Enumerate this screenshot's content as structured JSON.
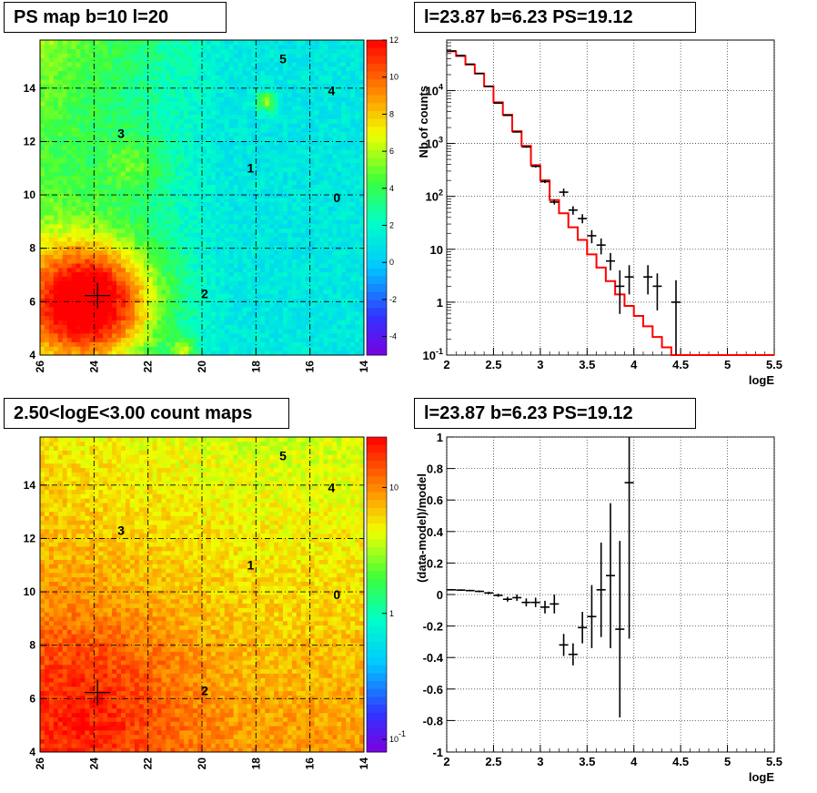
{
  "titles": {
    "map1": "PS map b=10 l=20",
    "spec1": "l=23.87 b=6.23 PS=19.12",
    "map2": "2.50<logE<3.00 count maps",
    "spec2": "l=23.87 b=6.23 PS=19.12"
  },
  "chart_data": [
    {
      "type": "heatmap",
      "title": "PS map b=10 l=20",
      "x_ticks": [
        "26",
        "24",
        "22",
        "20",
        "18",
        "16",
        "14"
      ],
      "y_ticks": [
        "4",
        "6",
        "8",
        "10",
        "12",
        "14"
      ],
      "xlim": [
        26,
        14
      ],
      "ylim": [
        4,
        15.8
      ],
      "z_ticks": [
        "12",
        "10",
        "8",
        "6",
        "4",
        "2",
        "0",
        "-2",
        "-4"
      ],
      "zlim": [
        -5,
        12
      ],
      "grid": true,
      "source_labels": [
        {
          "label": "5",
          "l": 17.0,
          "b": 15.1
        },
        {
          "label": "4",
          "l": 15.2,
          "b": 13.9
        },
        {
          "label": "3",
          "l": 23.0,
          "b": 12.3
        },
        {
          "label": "1",
          "l": 18.2,
          "b": 11.0
        },
        {
          "label": "0",
          "l": 15.0,
          "b": 9.9
        },
        {
          "label": "2",
          "l": 19.9,
          "b": 6.3
        }
      ],
      "marker": {
        "l": 23.87,
        "b": 6.23
      }
    },
    {
      "type": "line",
      "title": "l=23.87 b=6.23 PS=19.12",
      "xlabel": "logE",
      "ylabel": "Nb of counts",
      "xlim": [
        2,
        5.5
      ],
      "ylim": [
        0.1,
        90000
      ],
      "yscale": "log",
      "x_ticks": [
        "2",
        "2.5",
        "3",
        "3.5",
        "4",
        "4.5",
        "5",
        "5.5"
      ],
      "y_ticks": [
        "10^-1",
        "1",
        "10",
        "10^2",
        "10^3",
        "10^4"
      ],
      "grid": true,
      "series": [
        {
          "type": "step",
          "color": "#ff0000",
          "bin_edges": [
            2,
            2.1,
            2.2,
            2.3,
            2.4,
            2.5,
            2.6,
            2.7,
            2.8,
            2.9,
            3.0,
            3.1,
            3.2,
            3.3,
            3.4,
            3.5,
            3.6,
            3.7,
            3.8,
            3.9,
            4.0,
            4.1,
            4.2,
            4.3,
            4.4,
            4.5,
            4.6,
            4.7,
            4.8,
            4.9,
            5.0,
            5.1,
            5.2,
            5.3,
            5.4,
            5.5
          ],
          "values": [
            55000,
            45000,
            31000,
            21000,
            12000,
            6000,
            3500,
            1700,
            900,
            390,
            200,
            85,
            48,
            26,
            15,
            8,
            4.5,
            2.5,
            1.4,
            0.85,
            0.55,
            0.35,
            0.22,
            0.14,
            0.09,
            0.06,
            0.05,
            0.05,
            0.05,
            0.05,
            0.05,
            0.05,
            0.05,
            0.05,
            0.05
          ]
        },
        {
          "type": "errorbar",
          "color": "#000000",
          "x": [
            2.05,
            2.15,
            2.25,
            2.35,
            2.45,
            2.55,
            2.65,
            2.75,
            2.85,
            2.95,
            3.05,
            3.15,
            3.25,
            3.35,
            3.45,
            3.55,
            3.65,
            3.75,
            3.85,
            3.95,
            4.15,
            4.25,
            4.45
          ],
          "y": [
            56000,
            46000,
            31500,
            21000,
            12000,
            5800,
            3400,
            1650,
            860,
            370,
            190,
            78,
            120,
            55,
            38,
            18,
            12,
            6,
            2,
            3,
            3,
            2,
            1
          ],
          "ylo": [
            55000,
            45000,
            31000,
            20800,
            11800,
            5700,
            3340,
            1610,
            830,
            350,
            178,
            70,
            100,
            45,
            31,
            13,
            8,
            4,
            0.6,
            1.4,
            1.4,
            0.7,
            0.1
          ],
          "yhi": [
            57000,
            47000,
            32000,
            21200,
            12200,
            5900,
            3460,
            1690,
            890,
            390,
            205,
            87,
            140,
            65,
            46,
            23,
            16,
            8.5,
            4,
            5,
            5,
            3.5,
            2.6
          ]
        }
      ]
    },
    {
      "type": "heatmap",
      "title": "2.50<logE<3.00 count maps",
      "x_ticks": [
        "26",
        "24",
        "22",
        "20",
        "18",
        "16",
        "14"
      ],
      "y_ticks": [
        "4",
        "6",
        "8",
        "10",
        "12",
        "14"
      ],
      "xlim": [
        26,
        14
      ],
      "ylim": [
        4,
        15.8
      ],
      "z_ticks": [
        "10",
        "1",
        "10^-1"
      ],
      "zscale": "log",
      "grid": true,
      "source_labels": [
        {
          "label": "5",
          "l": 17.0,
          "b": 15.1
        },
        {
          "label": "4",
          "l": 15.2,
          "b": 13.9
        },
        {
          "label": "3",
          "l": 23.0,
          "b": 12.3
        },
        {
          "label": "1",
          "l": 18.2,
          "b": 11.0
        },
        {
          "label": "0",
          "l": 15.0,
          "b": 9.9
        },
        {
          "label": "2",
          "l": 19.9,
          "b": 6.3
        }
      ],
      "marker": {
        "l": 23.87,
        "b": 6.23
      }
    },
    {
      "type": "scatter",
      "title": "l=23.87 b=6.23 PS=19.12",
      "xlabel": "logE",
      "ylabel": "(data-model)/model",
      "xlim": [
        2,
        5.5
      ],
      "ylim": [
        -1,
        1
      ],
      "x_ticks": [
        "2",
        "2.5",
        "3",
        "3.5",
        "4",
        "4.5",
        "5",
        "5.5"
      ],
      "y_ticks": [
        "-1",
        "-0.8",
        "-0.6",
        "-0.4",
        "-0.2",
        "0",
        "0.2",
        "0.4",
        "0.6",
        "0.8",
        "1"
      ],
      "grid": true,
      "series": [
        {
          "type": "errorbar",
          "color": "#000000",
          "x": [
            2.05,
            2.15,
            2.25,
            2.35,
            2.45,
            2.55,
            2.65,
            2.75,
            2.85,
            2.95,
            3.05,
            3.15,
            3.25,
            3.35,
            3.45,
            3.55,
            3.65,
            3.75,
            3.85,
            3.95
          ],
          "y": [
            0.03,
            0.028,
            0.025,
            0.02,
            0.01,
            -0.005,
            -0.03,
            -0.02,
            -0.05,
            -0.05,
            -0.08,
            -0.06,
            -0.32,
            -0.38,
            -0.21,
            -0.14,
            0.03,
            0.12,
            -0.22,
            0.71
          ],
          "err": [
            0.005,
            0.005,
            0.005,
            0.006,
            0.008,
            0.01,
            0.015,
            0.02,
            0.025,
            0.03,
            0.04,
            0.06,
            0.07,
            0.07,
            0.1,
            0.2,
            0.3,
            0.46,
            0.56,
            0.99
          ]
        }
      ]
    }
  ]
}
